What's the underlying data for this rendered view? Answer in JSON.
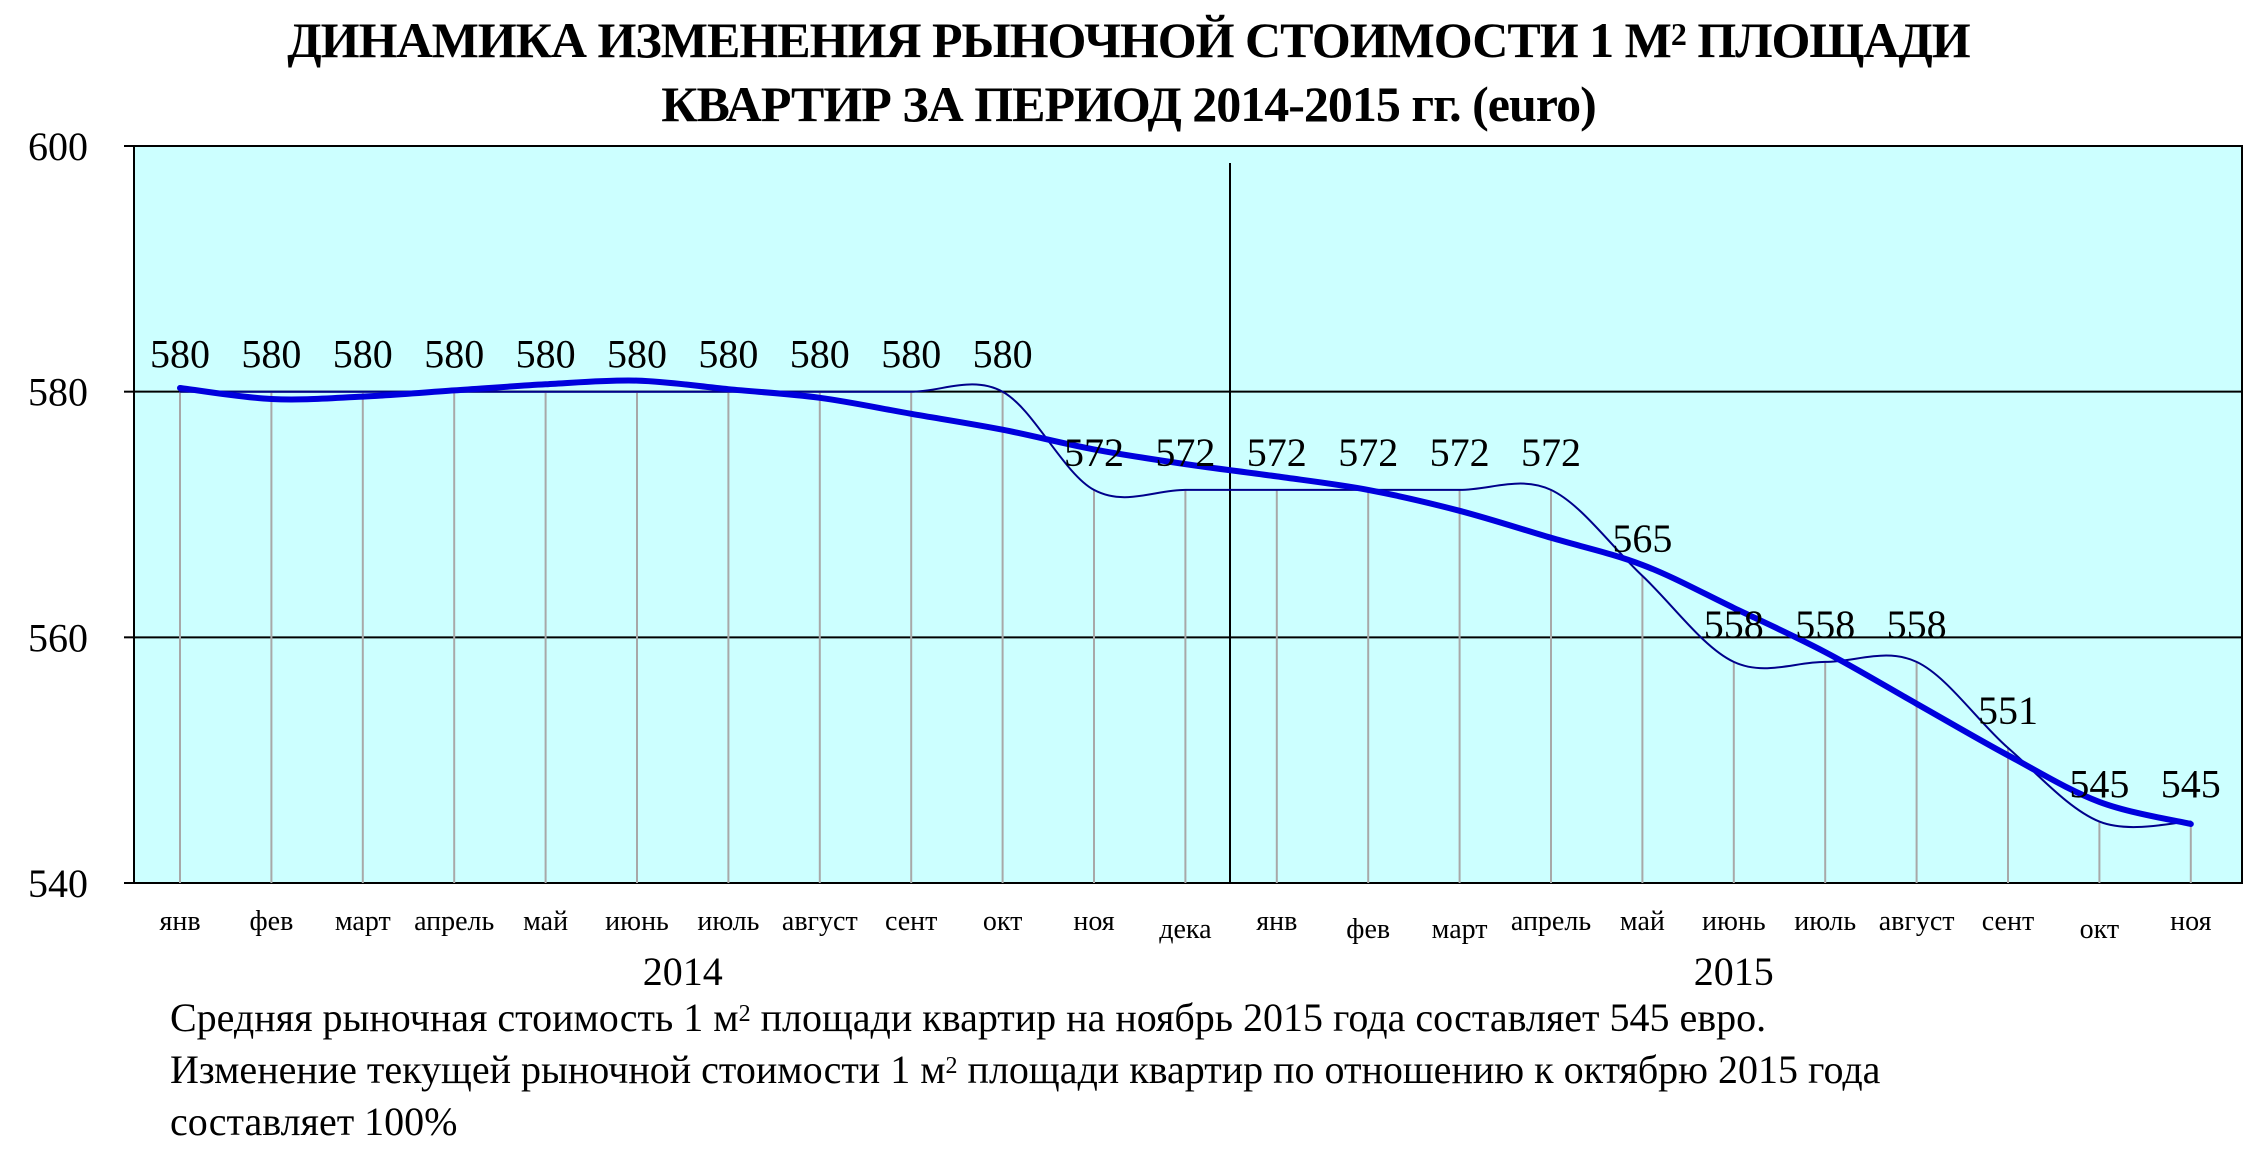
{
  "title": {
    "line1_prefix": "ДИНАМИКА ИЗМЕНЕНИЯ РЫНОЧНОЙ СТОИМОСТИ 1 М",
    "line1_sup": "2",
    "line1_suffix": " ПЛОЩАДИ",
    "line2": "КВАРТИР ЗА ПЕРИОД 2014-2015 гг. (euro)"
  },
  "chart_data": {
    "type": "line",
    "categories": [
      "янв",
      "фев",
      "март",
      "апрель",
      "май",
      "июнь",
      "июль",
      "август",
      "сент",
      "окт",
      "ноя",
      "дека",
      "янв",
      "фев",
      "март",
      "апрель",
      "май",
      "июнь",
      "июль",
      "август",
      "сент",
      "окт",
      "ноя"
    ],
    "x_groups": [
      {
        "label": "2014",
        "start": 0,
        "end": 11
      },
      {
        "label": "2015",
        "start": 12,
        "end": 22
      }
    ],
    "series": [
      {
        "values": [
          580,
          580,
          580,
          580,
          580,
          580,
          580,
          580,
          580,
          580,
          572,
          572,
          572,
          572,
          572,
          572,
          565,
          558,
          558,
          558,
          551,
          545,
          545
        ],
        "data_labels": true,
        "color": "#00008b"
      },
      {
        "values": [
          580.3,
          579.4,
          579.6,
          580.1,
          580.6,
          580.9,
          580.2,
          579.5,
          578.2,
          576.9,
          575.3,
          574.1,
          573.1,
          572.0,
          570.3,
          568.1,
          565.9,
          562.4,
          558.8,
          554.6,
          550.4,
          546.6,
          544.8
        ],
        "data_labels": false,
        "color": "#0000dd"
      }
    ],
    "ylim": [
      540,
      600
    ],
    "yticks": [
      540,
      560,
      580,
      600
    ],
    "grid": "horizontal",
    "background": "#ccffff",
    "xlabel": "",
    "ylabel": ""
  },
  "footnote": {
    "line1_prefix": "Средняя рыночная стоимость 1 м",
    "line1_sup": "2",
    "line1_suffix": " площади квартир на ноябрь 2015 года составляет 545 евро.",
    "line2_prefix": "Изменение текущей рыночной стоимости 1 м",
    "line2_sup": "2",
    "line2_suffix": " площади квартир по отношению к октябрю 2015 года",
    "line3": "составляет  100%"
  }
}
